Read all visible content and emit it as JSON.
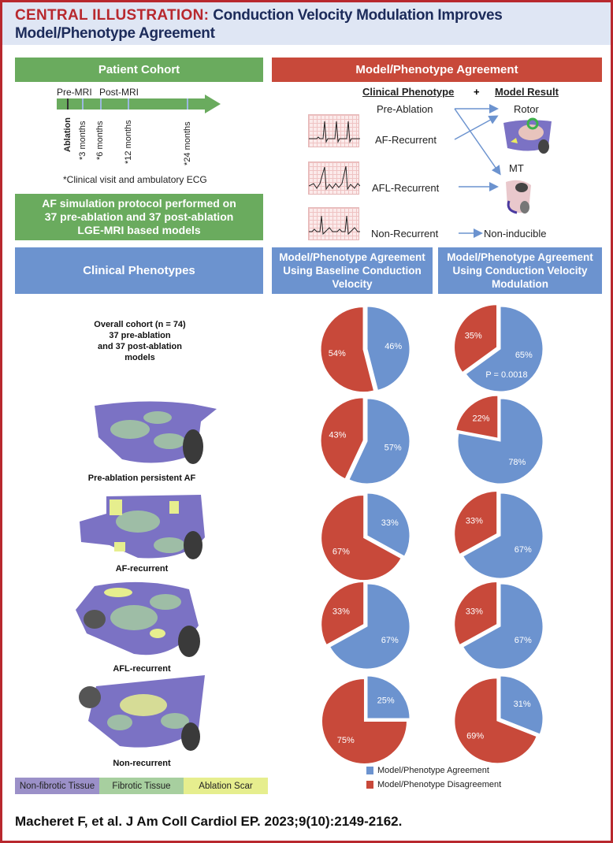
{
  "title": {
    "lead": "CENTRAL ILLUSTRATION:",
    "text": "Conduction Velocity Modulation Improves Model/Phenotype Agreement"
  },
  "cohort": {
    "header": "Patient Cohort",
    "pre_mri": "Pre-MRI",
    "post_mri": "Post-MRI",
    "timepoints": [
      "Ablation",
      "*3 months",
      "*6 months",
      "*12 months",
      "*24 months"
    ],
    "footnote": "*Clinical visit and ambulatory ECG",
    "protocol": "AF simulation protocol performed on 37 pre-ablation and 37 post-ablation LGE-MRI based models"
  },
  "agreement": {
    "header": "Model/Phenotype Agreement",
    "col_phenotype": "Clinical Phenotype",
    "plus": "+",
    "col_result": "Model Result",
    "phenotypes": [
      "Pre-Ablation",
      "AF-Recurrent",
      "AFL-Recurrent",
      "Non-Recurrent"
    ],
    "results": [
      "Rotor",
      "MT",
      "Non-inducible"
    ]
  },
  "headers": {
    "phenotypes": "Clinical Phenotypes",
    "baseline": "Model/Phenotype Agreement Using Baseline Conduction Velocity",
    "modulation": "Model/Phenotype Agreement Using Conduction Velocity Modulation"
  },
  "rows": [
    {
      "label": "Overall cohort (n = 74)\n37 pre-ablation\nand 37 post-ablation\nmodels",
      "baseline": 46,
      "modulation": 65,
      "pvalue": "P = 0.0018"
    },
    {
      "label": "Pre-ablation persistent AF",
      "baseline": 57,
      "modulation": 78
    },
    {
      "label": "AF-recurrent",
      "baseline": 33,
      "modulation": 67
    },
    {
      "label": "AFL-recurrent",
      "baseline": 67,
      "modulation": 67
    },
    {
      "label": "Non-recurrent",
      "baseline": 25,
      "modulation": 31
    }
  ],
  "tissue_legend": [
    {
      "label": "Non-fibrotic Tissue",
      "color": "#9b90c8"
    },
    {
      "label": "Fibrotic Tissue",
      "color": "#a7cf9f"
    },
    {
      "label": "Ablation Scar",
      "color": "#e6ee8e"
    }
  ],
  "pie_legend": [
    {
      "label": "Model/Phenotype Agreement",
      "color": "#6c93cf"
    },
    {
      "label": "Model/Phenotype Disagreement",
      "color": "#c8493a"
    }
  ],
  "citation": "Macheret F, et al. J Am Coll Cardiol EP. 2023;9(10):2149-2162."
}
